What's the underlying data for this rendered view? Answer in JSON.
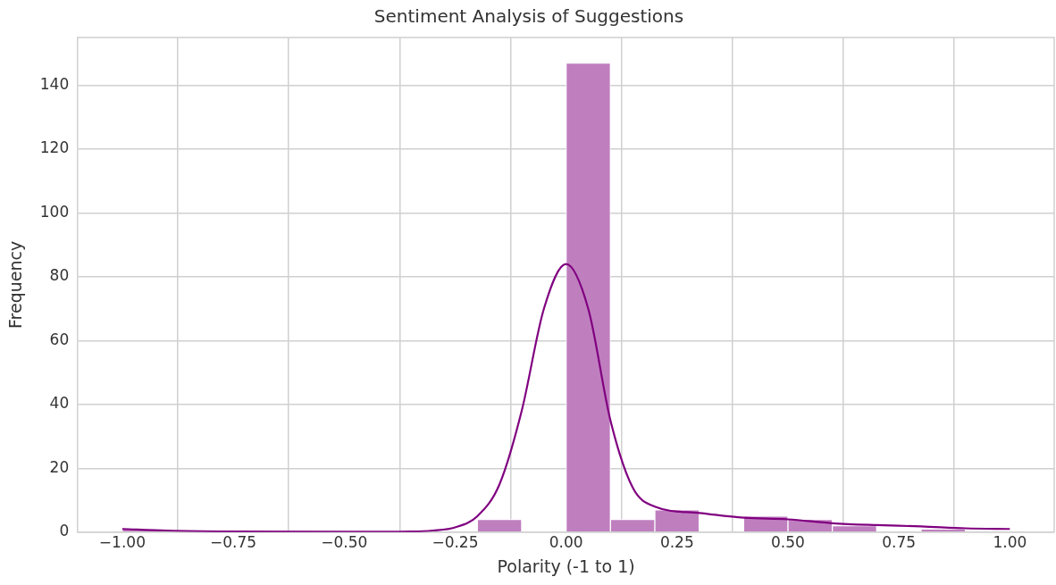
{
  "chart_data": {
    "type": "histogram",
    "title": "Sentiment Analysis of Suggestions",
    "xlabel": "Polarity (-1 to 1)",
    "ylabel": "Frequency",
    "bins": [
      -1.0,
      -0.9,
      -0.8,
      -0.7,
      -0.6,
      -0.5,
      -0.4,
      -0.3,
      -0.2,
      -0.1,
      0.0,
      0.1,
      0.2,
      0.3,
      0.4,
      0.5,
      0.6,
      0.7,
      0.8,
      0.9,
      1.0
    ],
    "values": [
      1,
      0,
      0,
      0,
      0,
      0,
      0,
      0,
      4,
      0,
      147,
      4,
      7,
      0,
      5,
      4,
      2,
      0,
      1,
      0
    ],
    "color": "#bf7fbf",
    "series": [
      {
        "type": "line",
        "color": "#800080",
        "x": [
          -1.0,
          -0.9,
          -0.75,
          -0.5,
          -0.35,
          -0.3,
          -0.25,
          -0.2,
          -0.15,
          -0.1,
          -0.05,
          0.0,
          0.05,
          0.1,
          0.15,
          0.2,
          0.3,
          0.4,
          0.5,
          0.6,
          0.7,
          0.8,
          0.9,
          1.0
        ],
        "values": [
          1,
          0.5,
          0.2,
          0.1,
          0.2,
          0.5,
          1.5,
          5,
          15,
          38,
          70,
          84,
          70,
          35,
          14,
          8,
          6,
          4.5,
          4,
          2.8,
          2.2,
          1.8,
          1.2,
          1
        ]
      }
    ],
    "xlim": [
      -1.1,
      1.1
    ],
    "ylim": [
      0,
      155
    ],
    "xticks": [
      {
        "value": -1.0,
        "label": "−1.00"
      },
      {
        "value": -0.75,
        "label": "−0.75"
      },
      {
        "value": -0.5,
        "label": "−0.50"
      },
      {
        "value": -0.25,
        "label": "−0.25"
      },
      {
        "value": 0,
        "label": "0.00"
      },
      {
        "value": 0.25,
        "label": "0.25"
      },
      {
        "value": 0.5,
        "label": "0.50"
      },
      {
        "value": 0.75,
        "label": "0.75"
      },
      {
        "value": 1.0,
        "label": "1.00"
      }
    ],
    "yticks": [
      0,
      20,
      40,
      60,
      80,
      100,
      120,
      140
    ],
    "grid": true,
    "legend": false
  }
}
